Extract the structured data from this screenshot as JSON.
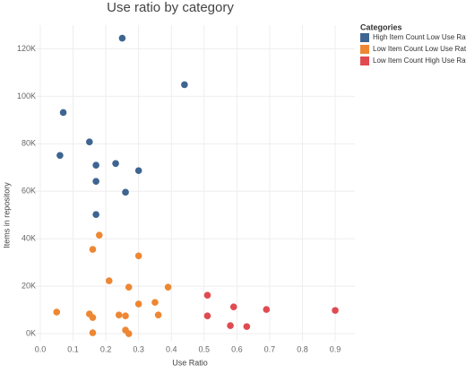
{
  "chart_data": {
    "type": "scatter",
    "title": "Use ratio by category",
    "x_label": "Use Ratio",
    "y_label": "Items in repository",
    "legend_title": "Categories",
    "legend_position": "top-right",
    "grid": true,
    "xlim": [
      -0.03,
      0.96
    ],
    "xticks": [
      {
        "value": 0,
        "label": "0.0"
      },
      0.1,
      0.2,
      0.3,
      0.4,
      0.5,
      0.6,
      0.7,
      0.8,
      0.9
    ],
    "ylim": [
      -3000,
      130000
    ],
    "yticks": [
      {
        "value": 0,
        "label": "0K"
      },
      {
        "value": 20000,
        "label": "20K"
      },
      {
        "value": 40000,
        "label": "40K"
      },
      {
        "value": 60000,
        "label": "60K"
      },
      {
        "value": 80000,
        "label": "80K"
      },
      {
        "value": 100000,
        "label": "100K"
      },
      {
        "value": 120000,
        "label": "120K"
      }
    ],
    "series": [
      {
        "name": "High Item Count Low Use Ratio",
        "color": "#3e6591",
        "x": [
          0.25,
          0.44,
          0.07,
          0.15,
          0.06,
          0.17,
          0.23,
          0.3,
          0.17,
          0.26,
          0.17
        ],
        "values": [
          124500,
          104900,
          93200,
          80800,
          75100,
          71000,
          71700,
          68700,
          64200,
          59600,
          50200
        ]
      },
      {
        "name": "Low Item Count Low Use Ratio",
        "color": "#ee8733",
        "x": [
          0.18,
          0.16,
          0.3,
          0.21,
          0.27,
          0.39,
          0.35,
          0.3,
          0.05,
          0.15,
          0.16,
          0.24,
          0.26,
          0.36,
          0.26,
          0.16,
          0.27
        ],
        "values": [
          41500,
          35500,
          32800,
          22300,
          19600,
          19600,
          13200,
          12500,
          9100,
          8300,
          6800,
          7900,
          7500,
          7900,
          1500,
          400,
          0
        ]
      },
      {
        "name": "Low Item Count High Use Ratio",
        "color": "#e04a50",
        "x": [
          0.51,
          0.51,
          0.59,
          0.69,
          0.9,
          0.58,
          0.63
        ],
        "values": [
          16200,
          7500,
          11300,
          10200,
          9800,
          3400,
          3000
        ]
      }
    ]
  }
}
